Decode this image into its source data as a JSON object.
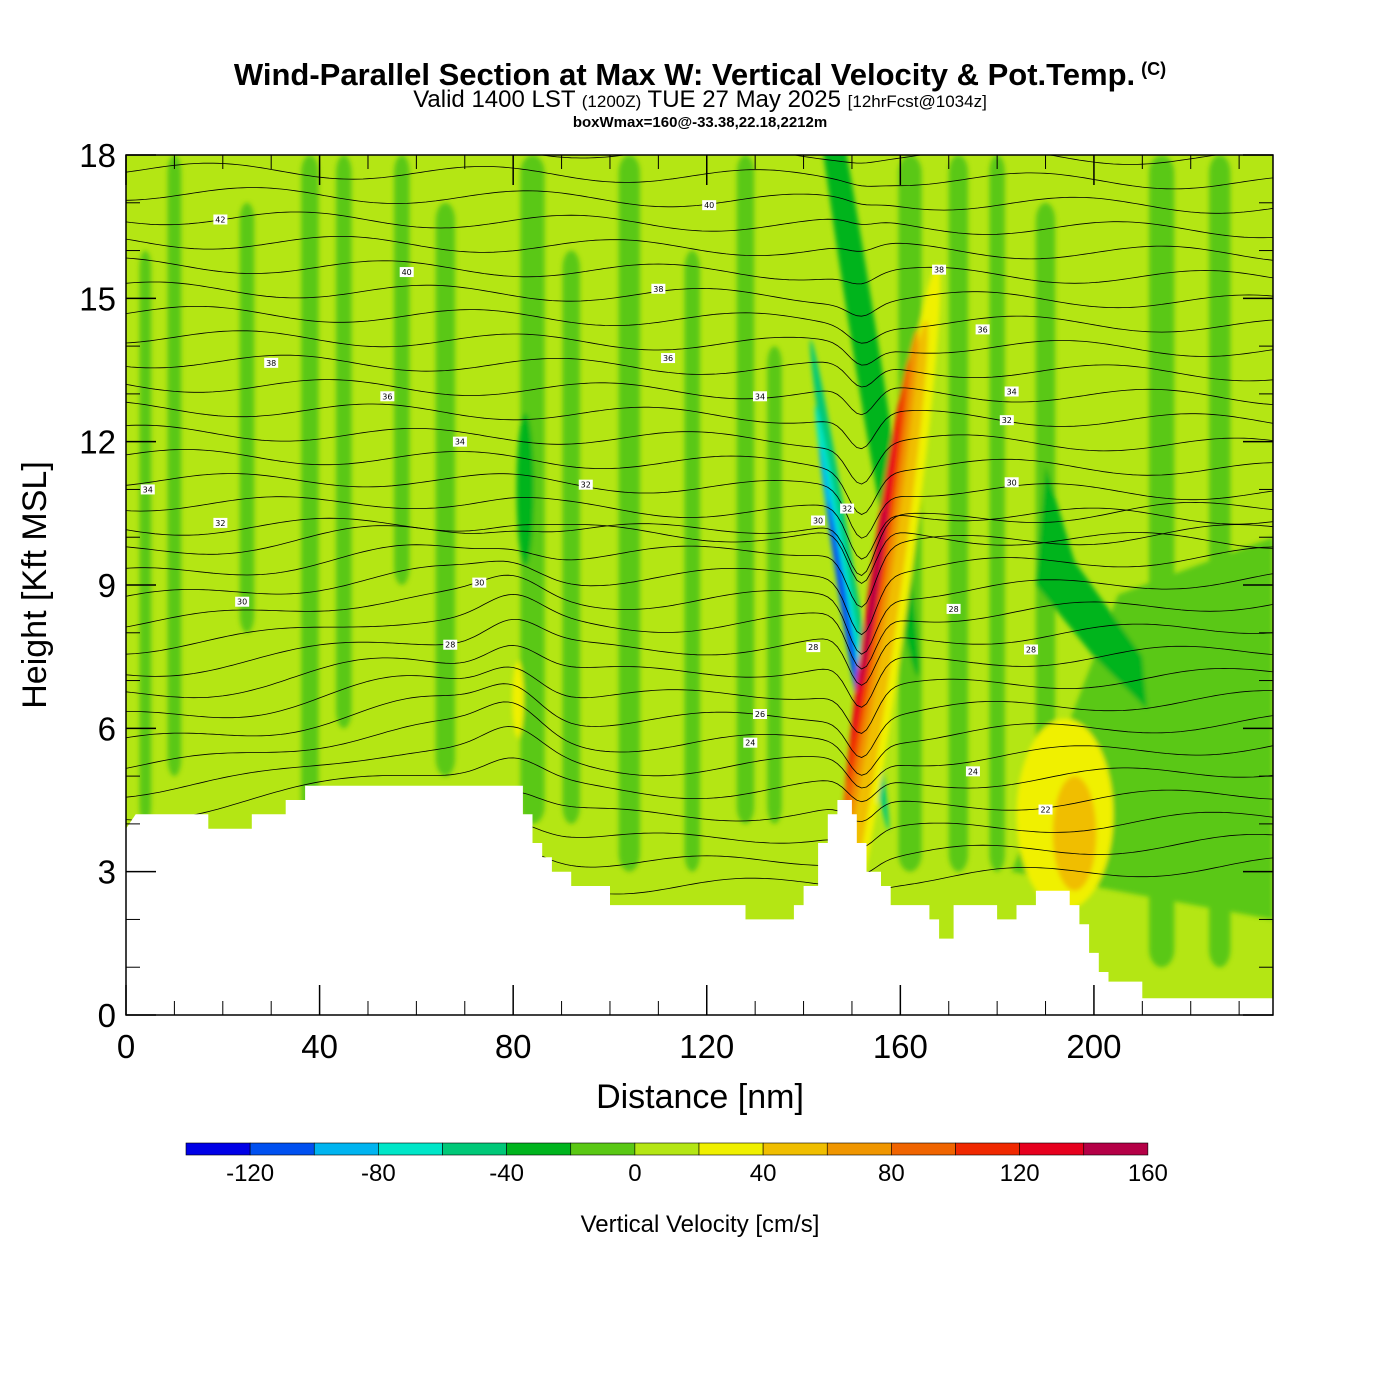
{
  "title": "Wind-Parallel Section at Max W: Vertical Velocity & Pot.Temp.",
  "copyright_mark": "(C)",
  "subtitle": {
    "valid_prefix": "Valid 1400 LST",
    "utc": "(1200Z)",
    "date": "TUE 27 May 2025",
    "forecast": "[12hrFcst@1034z]"
  },
  "subtitle2": "boxWmax=160@-33.38,22.18,2212m",
  "chart_data": {
    "type": "heatmap",
    "xlabel": "Distance [nm]",
    "ylabel": "Height [Kft MSL]",
    "xlim": [
      0,
      237
    ],
    "ylim": [
      0,
      18
    ],
    "x_ticks": [
      0,
      40,
      80,
      120,
      160,
      200
    ],
    "y_ticks": [
      0,
      3,
      6,
      9,
      12,
      15,
      18
    ],
    "colorbar": {
      "label": "Vertical Velocity [cm/s]",
      "ticks": [
        -120,
        -80,
        -40,
        0,
        40,
        80,
        120,
        160
      ],
      "bounds": [
        -140,
        180
      ],
      "colors": [
        "#0000e6",
        "#0050f0",
        "#00b4f0",
        "#00e6c8",
        "#00c878",
        "#00b41e",
        "#5ac814",
        "#b4e614",
        "#f0f000",
        "#f0be00",
        "#f09600",
        "#f06400",
        "#f02800",
        "#e6001e",
        "#b40046"
      ]
    },
    "max_w": {
      "value": 160,
      "x_nm": 154,
      "height_kft": 8.5
    },
    "min_w": {
      "value": -120,
      "x_nm": 150,
      "height_kft": 8.0
    },
    "terrain_profile": [
      [
        0,
        3.9
      ],
      [
        2,
        4.2
      ],
      [
        17,
        4.2
      ],
      [
        17,
        3.9
      ],
      [
        26,
        3.9
      ],
      [
        26,
        4.2
      ],
      [
        33,
        4.2
      ],
      [
        33,
        4.5
      ],
      [
        37,
        4.5
      ],
      [
        37,
        4.8
      ],
      [
        82,
        4.8
      ],
      [
        82,
        4.2
      ],
      [
        84,
        4.2
      ],
      [
        84,
        3.6
      ],
      [
        86,
        3.6
      ],
      [
        86,
        3.3
      ],
      [
        88,
        3.3
      ],
      [
        88,
        3.0
      ],
      [
        92,
        3.0
      ],
      [
        92,
        2.7
      ],
      [
        100,
        2.7
      ],
      [
        100,
        2.3
      ],
      [
        128,
        2.3
      ],
      [
        128,
        2.0
      ],
      [
        138,
        2.0
      ],
      [
        138,
        2.3
      ],
      [
        140,
        2.3
      ],
      [
        140,
        2.7
      ],
      [
        143,
        2.7
      ],
      [
        143,
        3.6
      ],
      [
        145,
        3.6
      ],
      [
        145,
        4.2
      ],
      [
        147,
        4.2
      ],
      [
        147,
        4.5
      ],
      [
        150,
        4.5
      ],
      [
        150,
        4.2
      ],
      [
        151,
        4.2
      ],
      [
        151,
        3.6
      ],
      [
        153,
        3.6
      ],
      [
        153,
        3.0
      ],
      [
        156,
        3.0
      ],
      [
        156,
        2.7
      ],
      [
        158,
        2.7
      ],
      [
        158,
        2.3
      ],
      [
        166,
        2.3
      ],
      [
        166,
        2.0
      ],
      [
        168,
        2.0
      ],
      [
        168,
        1.6
      ],
      [
        171,
        1.6
      ],
      [
        171,
        2.3
      ],
      [
        180,
        2.3
      ],
      [
        180,
        2.0
      ],
      [
        184,
        2.0
      ],
      [
        184,
        2.3
      ],
      [
        188,
        2.3
      ],
      [
        188,
        2.6
      ],
      [
        195,
        2.6
      ],
      [
        195,
        2.3
      ],
      [
        197,
        2.3
      ],
      [
        197,
        1.9
      ],
      [
        199,
        1.9
      ],
      [
        199,
        1.3
      ],
      [
        201,
        1.3
      ],
      [
        201,
        0.9
      ],
      [
        203,
        0.9
      ],
      [
        203,
        0.7
      ],
      [
        210,
        0.7
      ],
      [
        210,
        0.35
      ],
      [
        237,
        0.35
      ]
    ],
    "theta_contour_labels": [
      {
        "text": "42",
        "x": 19.5,
        "y": 16.65
      },
      {
        "text": "40",
        "x": 120.5,
        "y": 16.95
      },
      {
        "text": "40",
        "x": 58,
        "y": 15.55
      },
      {
        "text": "38",
        "x": 168,
        "y": 15.6
      },
      {
        "text": "38",
        "x": 110,
        "y": 15.2
      },
      {
        "text": "36",
        "x": 177,
        "y": 14.35
      },
      {
        "text": "38",
        "x": 30,
        "y": 13.65
      },
      {
        "text": "36",
        "x": 112,
        "y": 13.75
      },
      {
        "text": "34",
        "x": 183,
        "y": 13.05
      },
      {
        "text": "36",
        "x": 54,
        "y": 12.95
      },
      {
        "text": "34",
        "x": 131,
        "y": 12.95
      },
      {
        "text": "32",
        "x": 182,
        "y": 12.45
      },
      {
        "text": "34",
        "x": 69,
        "y": 12.0
      },
      {
        "text": "34",
        "x": 4.5,
        "y": 11.0
      },
      {
        "text": "32",
        "x": 95,
        "y": 11.1
      },
      {
        "text": "30",
        "x": 183,
        "y": 11.15
      },
      {
        "text": "32",
        "x": 149,
        "y": 10.6
      },
      {
        "text": "30",
        "x": 143,
        "y": 10.35
      },
      {
        "text": "32",
        "x": 19.5,
        "y": 10.3
      },
      {
        "text": "30",
        "x": 73,
        "y": 9.05
      },
      {
        "text": "30",
        "x": 24,
        "y": 8.65
      },
      {
        "text": "28",
        "x": 171,
        "y": 8.5
      },
      {
        "text": "28",
        "x": 67,
        "y": 7.75
      },
      {
        "text": "28",
        "x": 142,
        "y": 7.7
      },
      {
        "text": "28",
        "x": 187,
        "y": 7.65
      },
      {
        "text": "26",
        "x": 131,
        "y": 6.3
      },
      {
        "text": "24",
        "x": 129,
        "y": 5.7
      },
      {
        "text": "24",
        "x": 175,
        "y": 5.1
      },
      {
        "text": "22",
        "x": 190,
        "y": 4.3
      }
    ]
  }
}
